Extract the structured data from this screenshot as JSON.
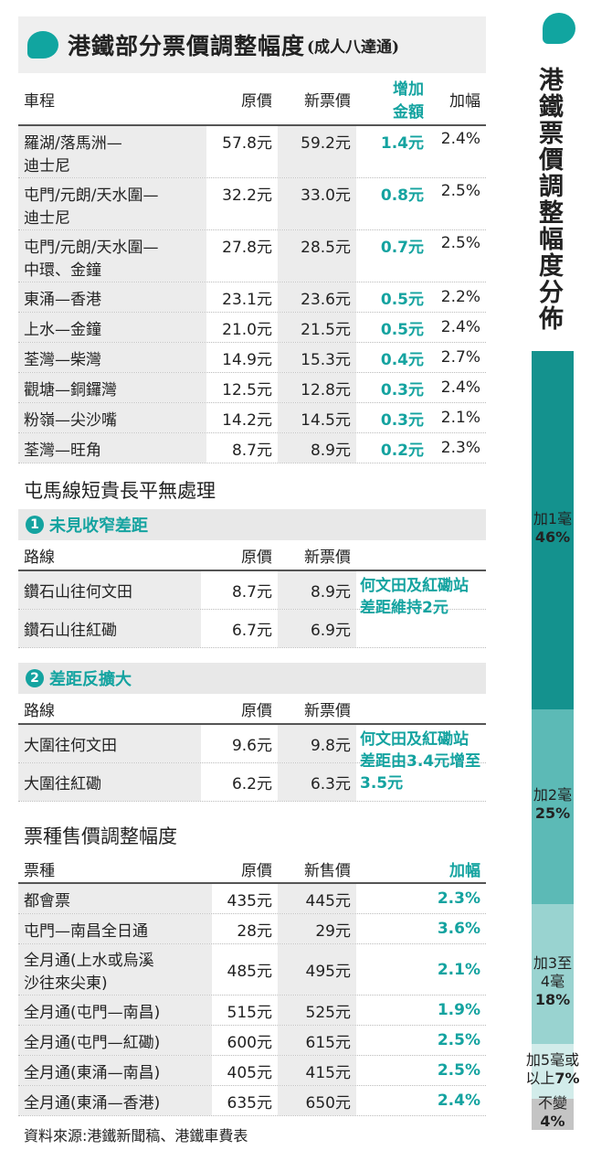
{
  "table1": {
    "title": "港鐵部分票價調整幅度",
    "subtitle": "(成人八達通)",
    "headers": [
      "車程",
      "原價",
      "新票價",
      "增加\n金額",
      "加幅"
    ],
    "rows": [
      [
        "羅湖/落馬洲—\n迪士尼",
        "57.8元",
        "59.2元",
        "1.4元",
        "2.4%"
      ],
      [
        "屯門/元朗/天水圍—\n迪士尼",
        "32.2元",
        "33.0元",
        "0.8元",
        "2.5%"
      ],
      [
        "屯門/元朗/天水圍—\n中環、金鐘",
        "27.8元",
        "28.5元",
        "0.7元",
        "2.5%"
      ],
      [
        "東涌—香港",
        "23.1元",
        "23.6元",
        "0.5元",
        "2.2%"
      ],
      [
        "上水—金鐘",
        "21.0元",
        "21.5元",
        "0.5元",
        "2.4%"
      ],
      [
        "荃灣—柴灣",
        "14.9元",
        "15.3元",
        "0.4元",
        "2.7%"
      ],
      [
        "觀塘—銅鑼灣",
        "12.5元",
        "12.8元",
        "0.3元",
        "2.4%"
      ],
      [
        "粉嶺—尖沙嘴",
        "14.2元",
        "14.5元",
        "0.3元",
        "2.1%"
      ],
      [
        "荃灣—旺角",
        "8.7元",
        "8.9元",
        "0.2元",
        "2.3%"
      ]
    ]
  },
  "section2": {
    "title": "屯馬線短貴長平無處理",
    "sub1": {
      "num": "1",
      "title": "未見收窄差距",
      "headers": [
        "路線",
        "原價",
        "新票價"
      ],
      "rows": [
        [
          "鑽石山往何文田",
          "8.7元",
          "8.9元"
        ],
        [
          "鑽石山往紅磡",
          "6.7元",
          "6.9元"
        ]
      ],
      "note": "何文田及紅磡站差距維持2元"
    },
    "sub2": {
      "num": "2",
      "title": "差距反擴大",
      "headers": [
        "路線",
        "原價",
        "新票價"
      ],
      "rows": [
        [
          "大圍往何文田",
          "9.6元",
          "9.8元"
        ],
        [
          "大圍往紅磡",
          "6.2元",
          "6.3元"
        ]
      ],
      "note": "何文田及紅磡站差距由3.4元增至3.5元"
    }
  },
  "table3": {
    "title": "票種售價調整幅度",
    "headers": [
      "票種",
      "原價",
      "新售價",
      "加幅"
    ],
    "rows": [
      [
        "都會票",
        "435元",
        "445元",
        "2.3%"
      ],
      [
        "屯門—南昌全日通",
        "28元",
        "29元",
        "3.6%"
      ],
      [
        "全月通(上水或烏溪\n沙往來尖東)",
        "485元",
        "495元",
        "2.1%"
      ],
      [
        "全月通(屯門—南昌)",
        "515元",
        "525元",
        "1.9%"
      ],
      [
        "全月通(屯門—紅磡)",
        "600元",
        "615元",
        "2.5%"
      ],
      [
        "全月通(東涌—南昌)",
        "405元",
        "415元",
        "2.5%"
      ],
      [
        "全月通(東涌—香港)",
        "635元",
        "650元",
        "2.4%"
      ]
    ]
  },
  "source": "資料來源:港鐵新聞稿、港鐵車費表",
  "chart_data": {
    "type": "bar",
    "title": "港鐵票價調整幅度分佈",
    "categories": [
      "加1毫",
      "加2毫",
      "加3至4毫",
      "加5毫或以上",
      "不變"
    ],
    "values": [
      46,
      25,
      18,
      7,
      4
    ],
    "labels": [
      "加1毫",
      "加2毫",
      "加3至\n4毫",
      "加5毫或\n以上",
      "不變"
    ],
    "value_labels": [
      "46%",
      "25%",
      "18%",
      "7%",
      "4%"
    ],
    "colors": [
      "#14928e",
      "#5cbab6",
      "#99d3d0",
      "#d2ecea",
      "#c4c4c4"
    ]
  },
  "colors": {
    "accent": "#14a3a0"
  }
}
